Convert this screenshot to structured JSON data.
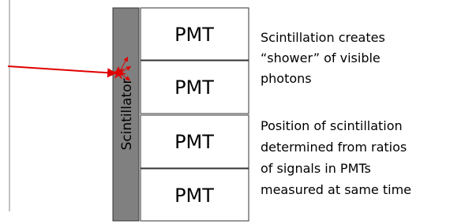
{
  "scintillator": {
    "label": "Scintillator"
  },
  "pmts": [
    "PMT",
    "PMT",
    "PMT",
    "PMT"
  ],
  "notes": [
    [
      "Scintillation creates",
      "“shower” of visible",
      "photons"
    ],
    [
      "Position of scintillation",
      "determined from ratios",
      "of signals in PMTs",
      "measured at same time"
    ]
  ]
}
